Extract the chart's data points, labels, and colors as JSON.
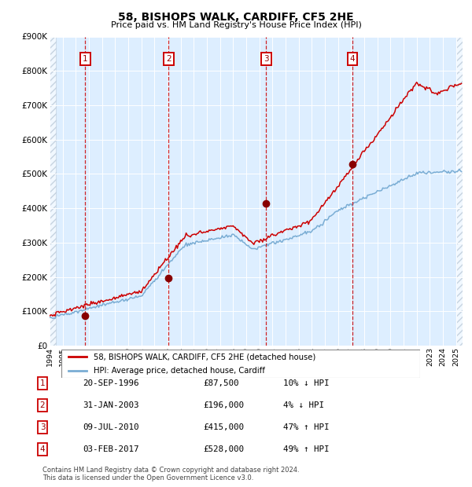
{
  "title": "58, BISHOPS WALK, CARDIFF, CF5 2HE",
  "subtitle": "Price paid vs. HM Land Registry's House Price Index (HPI)",
  "hpi_color": "#7aadd4",
  "price_color": "#cc0000",
  "plot_bg": "#ddeeff",
  "ylim": [
    0,
    900000
  ],
  "yticks": [
    0,
    100000,
    200000,
    300000,
    400000,
    500000,
    600000,
    700000,
    800000,
    900000
  ],
  "xstart": 1994,
  "xend": 2025.5,
  "sales": [
    {
      "num": 1,
      "date": "20-SEP-1996",
      "year": 1996.72,
      "price": 87500,
      "hpi_pct": "10% ↓ HPI"
    },
    {
      "num": 2,
      "date": "31-JAN-2003",
      "year": 2003.08,
      "price": 196000,
      "hpi_pct": "4% ↓ HPI"
    },
    {
      "num": 3,
      "date": "09-JUL-2010",
      "year": 2010.52,
      "price": 415000,
      "hpi_pct": "47% ↑ HPI"
    },
    {
      "num": 4,
      "date": "03-FEB-2017",
      "year": 2017.09,
      "price": 528000,
      "hpi_pct": "49% ↑ HPI"
    }
  ],
  "legend_label_price": "58, BISHOPS WALK, CARDIFF, CF5 2HE (detached house)",
  "legend_label_hpi": "HPI: Average price, detached house, Cardiff",
  "footer1": "Contains HM Land Registry data © Crown copyright and database right 2024.",
  "footer2": "This data is licensed under the Open Government Licence v3.0."
}
